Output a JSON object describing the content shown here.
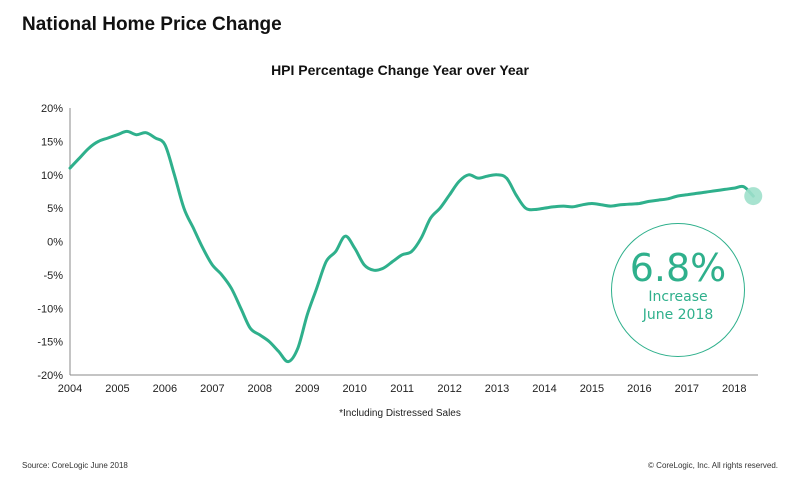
{
  "page_title": "National Home Price Change",
  "footer": {
    "source": "Source: CoreLogic June 2018",
    "copyright": "© CoreLogic, Inc. All rights reserved."
  },
  "callout": {
    "value": "6.8%",
    "line1": "Increase",
    "line2": "June 2018"
  },
  "colors": {
    "series": "#2fb08c",
    "marker": "#9fe0cb",
    "axis": "#888888"
  },
  "chart_data": {
    "type": "line",
    "title": "HPI Percentage Change Year over Year",
    "note": "*Including Distressed Sales",
    "xlabel": "",
    "ylabel": "",
    "grid": false,
    "xlim": [
      2004,
      2018.5
    ],
    "ylim": [
      -20,
      20
    ],
    "y_ticks": [
      "20%",
      "15%",
      "10%",
      "5%",
      "0%",
      "-5%",
      "-10%",
      "-15%",
      "-20%"
    ],
    "x_ticks": [
      "2004",
      "2005",
      "2006",
      "2007",
      "2008",
      "2009",
      "2010",
      "2011",
      "2012",
      "2013",
      "2014",
      "2015",
      "2016",
      "2017",
      "2018"
    ],
    "series": [
      {
        "x": [
          2004,
          2004.2,
          2004.4,
          2004.6,
          2004.8,
          2005,
          2005.2,
          2005.4,
          2005.6,
          2005.8,
          2006,
          2006.2,
          2006.4,
          2006.6,
          2006.8,
          2007,
          2007.2,
          2007.4,
          2007.6,
          2007.8,
          2008,
          2008.2,
          2008.4,
          2008.6,
          2008.8,
          2009,
          2009.2,
          2009.4,
          2009.6,
          2009.8,
          2010,
          2010.2,
          2010.4,
          2010.6,
          2010.8,
          2011,
          2011.2,
          2011.4,
          2011.6,
          2011.8,
          2012,
          2012.2,
          2012.4,
          2012.6,
          2012.8,
          2013,
          2013.2,
          2013.4,
          2013.6,
          2013.8,
          2014,
          2014.2,
          2014.4,
          2014.6,
          2014.8,
          2015,
          2015.2,
          2015.4,
          2015.6,
          2015.8,
          2016,
          2016.2,
          2016.4,
          2016.6,
          2016.8,
          2017,
          2017.2,
          2017.4,
          2017.6,
          2017.8,
          2018,
          2018.2,
          2018.4
        ],
        "values": [
          11,
          12.5,
          14,
          15,
          15.5,
          16,
          16.5,
          16,
          16.3,
          15.5,
          14.5,
          10,
          5,
          2,
          -1,
          -3.5,
          -5,
          -7,
          -10,
          -13,
          -14,
          -15,
          -16.5,
          -18,
          -16,
          -11,
          -7,
          -3,
          -1.5,
          0.8,
          -1,
          -3.5,
          -4.3,
          -4,
          -3,
          -2,
          -1.5,
          0.5,
          3.5,
          5,
          7,
          9,
          10,
          9.5,
          9.8,
          10,
          9.5,
          7,
          5,
          4.8,
          5,
          5.2,
          5.3,
          5.2,
          5.5,
          5.7,
          5.5,
          5.3,
          5.5,
          5.6,
          5.7,
          6,
          6.2,
          6.4,
          6.8,
          7,
          7.2,
          7.4,
          7.6,
          7.8,
          8,
          8.2,
          6.8
        ]
      }
    ]
  }
}
